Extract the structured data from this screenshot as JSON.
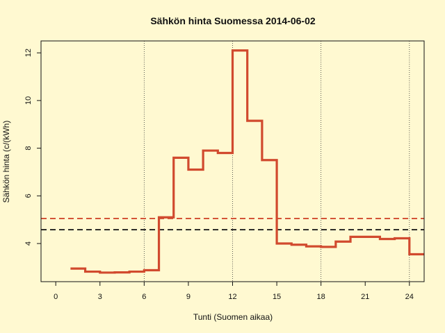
{
  "chart_data": {
    "type": "line",
    "title": "Sähkön hinta Suomessa 2014-06-02",
    "xlabel": "Tunti (Suomen aikaa)",
    "ylabel": "Sähkön hinta (c/(kWh)",
    "xlim": [
      -1,
      25
    ],
    "ylim": [
      2.4,
      12.5
    ],
    "x_ticks": [
      0,
      3,
      6,
      9,
      12,
      15,
      18,
      21,
      24
    ],
    "y_ticks": [
      4,
      6,
      8,
      10,
      12
    ],
    "x_tick_labels": [
      "0",
      "3",
      "6",
      "9",
      "12",
      "15",
      "18",
      "21",
      "24"
    ],
    "y_tick_labels": [
      "4",
      "6",
      "8",
      "10",
      "12"
    ],
    "vertical_grid_x": [
      6,
      12,
      18,
      24
    ],
    "series": [
      {
        "style": "step",
        "color": "#d14a2e",
        "x": [
          1,
          2,
          3,
          4,
          5,
          6,
          7,
          8,
          9,
          10,
          11,
          12,
          13,
          14,
          15,
          16,
          17,
          18,
          19,
          20,
          21,
          22,
          23,
          24,
          25
        ],
        "values": [
          2.95,
          2.82,
          2.78,
          2.79,
          2.82,
          2.88,
          5.1,
          7.6,
          7.1,
          7.9,
          7.8,
          12.1,
          9.15,
          7.5,
          4.0,
          3.95,
          3.88,
          3.86,
          4.08,
          4.28,
          4.28,
          4.19,
          4.22,
          3.55,
          3.55
        ]
      }
    ],
    "reference_lines": [
      {
        "y": 5.05,
        "color": "#d14a2e",
        "style": "dashed"
      },
      {
        "y": 4.58,
        "color": "#111111",
        "style": "dashed"
      }
    ],
    "grid": false,
    "background": "#fff9d1"
  }
}
